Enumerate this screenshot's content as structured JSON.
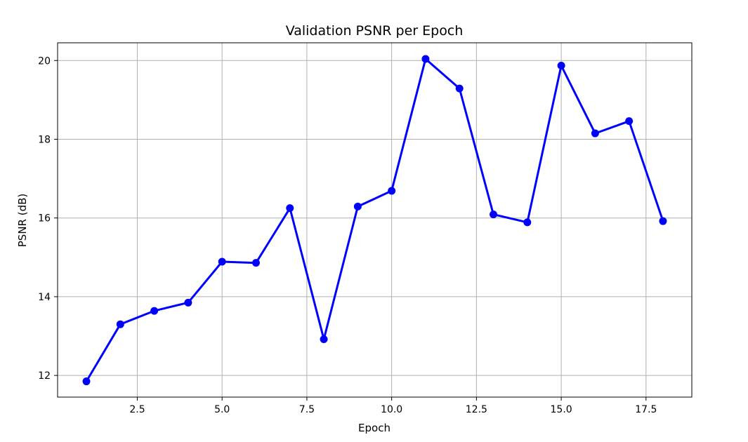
{
  "chart_data": {
    "type": "line",
    "title": "Validation PSNR per Epoch",
    "xlabel": "Epoch",
    "ylabel": "PSNR (dB)",
    "xlim": [
      0.15,
      18.85
    ],
    "ylim": [
      11.45,
      20.45
    ],
    "xticks": [
      2.5,
      5.0,
      7.5,
      10.0,
      12.5,
      15.0,
      17.5
    ],
    "xtick_labels": [
      "2.5",
      "5.0",
      "7.5",
      "10.0",
      "12.5",
      "15.0",
      "17.5"
    ],
    "yticks": [
      12,
      14,
      16,
      18,
      20
    ],
    "ytick_labels": [
      "12",
      "14",
      "16",
      "18",
      "20"
    ],
    "grid": true,
    "series": [
      {
        "color": "#0000ff",
        "marker": "circle",
        "x": [
          1,
          2,
          3,
          4,
          5,
          6,
          7,
          8,
          9,
          10,
          11,
          12,
          13,
          14,
          15,
          16,
          17,
          18
        ],
        "y": [
          11.85,
          13.3,
          13.64,
          13.85,
          14.89,
          14.86,
          16.25,
          12.92,
          16.29,
          16.69,
          20.04,
          19.29,
          16.09,
          15.89,
          19.87,
          18.15,
          18.46,
          15.92
        ]
      }
    ]
  }
}
